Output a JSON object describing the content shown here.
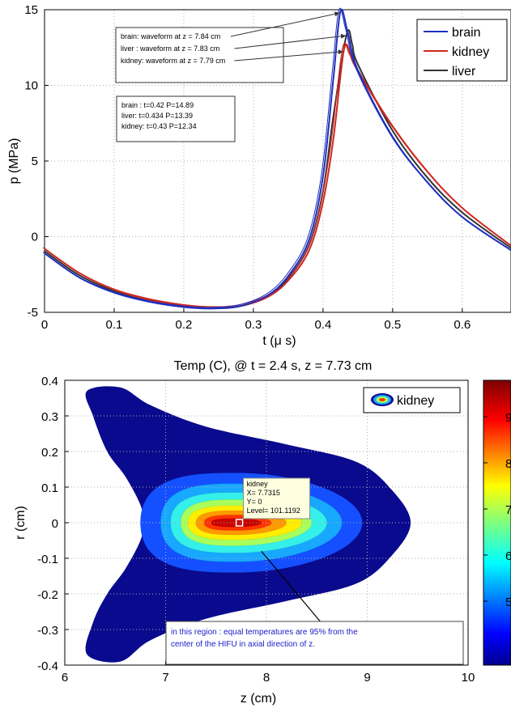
{
  "chart_data": [
    {
      "type": "line",
      "title": "",
      "xlabel": "t (μ s)",
      "ylabel": "p (MPa)",
      "xlim": [
        0,
        0.67
      ],
      "ylim": [
        -5,
        15
      ],
      "xticks": [
        "0",
        "0.1",
        "0.2",
        "0.3",
        "0.4",
        "0.5",
        "0.6"
      ],
      "yticks": [
        "-5",
        "0",
        "5",
        "10",
        "15"
      ],
      "grid": true,
      "legend_position": "top-right",
      "series": [
        {
          "name": "brain",
          "color": "#1f2fbf",
          "x": [
            0,
            0.05,
            0.1,
            0.15,
            0.2,
            0.24,
            0.28,
            0.32,
            0.35,
            0.38,
            0.4,
            0.415,
            0.425,
            0.435,
            0.45,
            0.5,
            0.55,
            0.6,
            0.67
          ],
          "y": [
            -1.1,
            -2.7,
            -3.7,
            -4.3,
            -4.65,
            -4.75,
            -4.6,
            -3.9,
            -2.6,
            -0.2,
            4.0,
            10.5,
            14.89,
            13.6,
            11.0,
            6.6,
            3.6,
            1.3,
            -0.9
          ]
        },
        {
          "name": "kidney",
          "color": "#d0281f",
          "x": [
            0,
            0.05,
            0.1,
            0.15,
            0.2,
            0.24,
            0.28,
            0.32,
            0.35,
            0.38,
            0.4,
            0.415,
            0.43,
            0.44,
            0.45,
            0.5,
            0.55,
            0.6,
            0.67
          ],
          "y": [
            -0.8,
            -2.4,
            -3.5,
            -4.15,
            -4.55,
            -4.7,
            -4.6,
            -4.0,
            -2.9,
            -0.9,
            2.3,
            6.5,
            12.34,
            12.0,
            11.0,
            7.3,
            4.3,
            1.9,
            -0.6
          ]
        },
        {
          "name": "liver",
          "color": "#333333",
          "x": [
            0,
            0.05,
            0.1,
            0.15,
            0.2,
            0.24,
            0.28,
            0.32,
            0.35,
            0.38,
            0.4,
            0.415,
            0.434,
            0.442,
            0.45,
            0.5,
            0.55,
            0.6,
            0.67
          ],
          "y": [
            -0.95,
            -2.55,
            -3.6,
            -4.25,
            -4.6,
            -4.72,
            -4.6,
            -3.95,
            -2.75,
            -0.55,
            3.0,
            8.0,
            13.39,
            12.7,
            11.4,
            7.0,
            3.9,
            1.6,
            -0.75
          ]
        }
      ],
      "annotations": [
        {
          "text": "brain: waveform at z = 7.84 cm",
          "point": [
            0.425,
            14.89
          ]
        },
        {
          "text": "liver : waveform at z = 7.83 cm",
          "point": [
            0.434,
            13.39
          ]
        },
        {
          "text": "kidney: waveform at z = 7.79 cm",
          "point": [
            0.43,
            12.34
          ]
        }
      ],
      "info_lines": [
        "brain : t=0.42  P=14.89",
        "liver: t=0.434  P=13.39",
        "kidney: t=0.43  P=12.34"
      ]
    },
    {
      "type": "heatmap",
      "title": "Temp (C), @ t = 2.4 s, z = 7.73 cm",
      "xlabel": "z (cm)",
      "ylabel": "r (cm)",
      "xlim": [
        6,
        10
      ],
      "ylim": [
        -0.4,
        0.4
      ],
      "xticks": [
        "6",
        "7",
        "8",
        "9",
        "10"
      ],
      "yticks": [
        "0.4",
        "0.3",
        "0.2",
        "0.1",
        "0",
        "-0.1",
        "-0.2",
        "-0.3",
        "-0.4"
      ],
      "grid": true,
      "legend": "kidney",
      "legend_position": "top-right",
      "colorbar_ticks": [
        "9",
        "8",
        "7",
        "6",
        "5"
      ],
      "contour_levels": [
        {
          "color": "#0a0a8e",
          "z": [
            6.25,
            9.45
          ],
          "r": [
            -0.36,
            0.36
          ]
        },
        {
          "color": "#1450ff",
          "z": [
            6.75,
            8.95
          ],
          "r": [
            -0.14,
            0.14
          ]
        },
        {
          "color": "#18a8ff",
          "z": [
            6.95,
            8.75
          ],
          "r": [
            -0.11,
            0.11
          ]
        },
        {
          "color": "#35f0e8",
          "z": [
            7.05,
            8.6
          ],
          "r": [
            -0.085,
            0.085
          ]
        },
        {
          "color": "#a8ff5c",
          "z": [
            7.15,
            8.45
          ],
          "r": [
            -0.065,
            0.065
          ]
        },
        {
          "color": "#ffee00",
          "z": [
            7.22,
            8.35
          ],
          "r": [
            -0.048,
            0.048
          ]
        },
        {
          "color": "#ff9900",
          "z": [
            7.3,
            8.2
          ],
          "r": [
            -0.034,
            0.034
          ]
        },
        {
          "color": "#ff3300",
          "z": [
            7.38,
            8.05
          ],
          "r": [
            -0.022,
            0.022
          ]
        },
        {
          "color": "#c80000",
          "z": [
            7.45,
            7.95
          ],
          "r": [
            -0.012,
            0.012
          ]
        }
      ],
      "datatip": {
        "lines": [
          "kidney",
          "X= 7.7315",
          "Y= 0",
          "Level= 101.1192"
        ],
        "x": 7.7315,
        "y": 0
      },
      "note": {
        "lines": [
          "in this region : equal temperatures are 95% from the",
          "center of the HIFU in axial direction of z."
        ],
        "arrow_from": [
          7.95,
          -0.08
        ],
        "arrow_to": [
          8.6,
          -0.3
        ]
      }
    }
  ]
}
